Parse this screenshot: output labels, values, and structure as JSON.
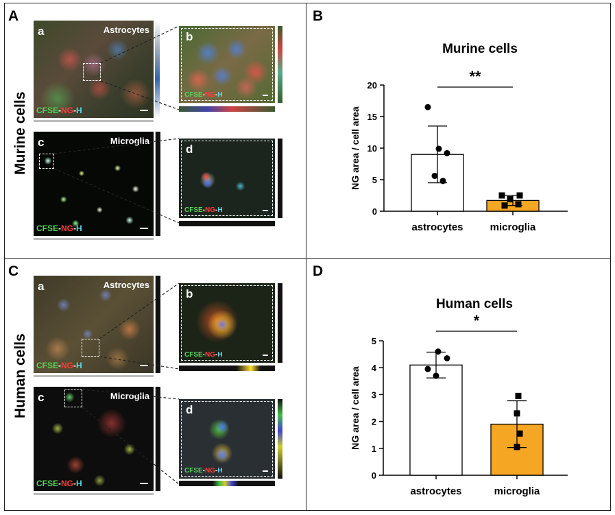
{
  "panels": {
    "A": {
      "label": "A",
      "side_label": "Murine cells",
      "images": [
        {
          "label": "a",
          "title": "Astrocytes",
          "stain": [
            "CFSE",
            "NG",
            "H"
          ]
        },
        {
          "label": "b",
          "title": "",
          "stain": [
            "CFSE",
            "NG",
            "H"
          ]
        },
        {
          "label": "c",
          "title": "Microglia",
          "stain": [
            "CFSE",
            "NG",
            "H"
          ]
        },
        {
          "label": "d",
          "title": "",
          "stain": [
            "CFSE",
            "NG",
            "H"
          ]
        }
      ]
    },
    "B": {
      "label": "B"
    },
    "C": {
      "label": "C",
      "side_label": "Human cells",
      "images": [
        {
          "label": "a",
          "title": "Astrocytes",
          "stain": [
            "CFSE",
            "NG",
            "H"
          ]
        },
        {
          "label": "b",
          "title": "",
          "stain": [
            "CFSE",
            "NG",
            "H"
          ]
        },
        {
          "label": "c",
          "title": "Microglia",
          "stain": [
            "CFSE",
            "NG",
            "H"
          ]
        },
        {
          "label": "d",
          "title": "",
          "stain": [
            "CFSE",
            "NG",
            "H"
          ]
        }
      ]
    },
    "D": {
      "label": "D"
    }
  },
  "stain_sep": "-",
  "colors": {
    "CFSE": "#55d455",
    "NG": "#ff3b3b",
    "H": "#5fd8e8",
    "microglia_bar": "#f5a623",
    "astro_bar": "#ffffff"
  },
  "chart_data": [
    {
      "type": "bar",
      "title": "Murine cells",
      "ylabel": "NG area / cell area",
      "xlabel": "",
      "categories": [
        "astrocytes",
        "microglia"
      ],
      "values": [
        9.0,
        1.7
      ],
      "error": [
        4.5,
        0.8
      ],
      "ylim": [
        0,
        20
      ],
      "yticks": [
        0,
        5,
        10,
        15,
        20
      ],
      "points": [
        [
          16.5,
          9.9,
          9.2,
          5.6,
          4.8
        ],
        [
          2.5,
          2.5,
          1.9,
          1.1,
          0.9
        ]
      ],
      "markers": [
        "circle",
        "square"
      ],
      "significance": "**"
    },
    {
      "type": "bar",
      "title": "Human cells",
      "ylabel": "NG area / cell area",
      "xlabel": "",
      "categories": [
        "astrocytes",
        "microglia"
      ],
      "values": [
        4.1,
        1.9
      ],
      "error": [
        0.48,
        0.87
      ],
      "ylim": [
        0,
        5
      ],
      "yticks": [
        0,
        1,
        2,
        3,
        4,
        5
      ],
      "points": [
        [
          4.6,
          4.35,
          3.95,
          3.7
        ],
        [
          2.95,
          2.3,
          1.55,
          1.05
        ]
      ],
      "markers": [
        "circle",
        "square"
      ],
      "significance": "*"
    }
  ]
}
